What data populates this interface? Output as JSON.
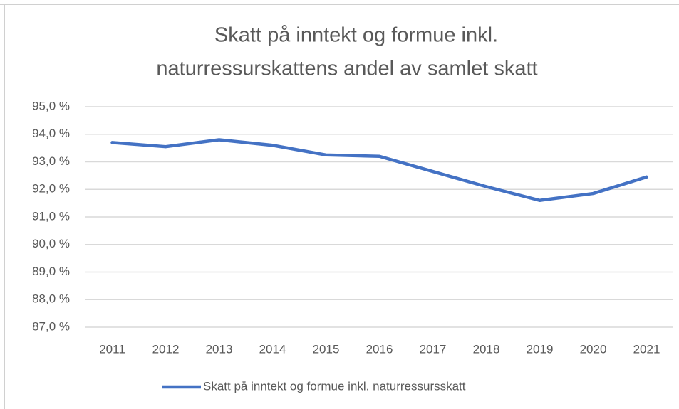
{
  "chart_data": {
    "type": "line",
    "title": [
      "Skatt på inntekt og formue inkl.",
      "naturressurskattens andel av samlet skatt"
    ],
    "categories": [
      "2011",
      "2012",
      "2013",
      "2014",
      "2015",
      "2016",
      "2017",
      "2018",
      "2019",
      "2020",
      "2021"
    ],
    "series": [
      {
        "name": "Skatt på inntekt og formue inkl. naturressursskatt",
        "color": "#4472c4",
        "values": [
          93.7,
          93.55,
          93.8,
          93.6,
          93.25,
          93.2,
          92.65,
          92.1,
          91.6,
          91.85,
          92.45
        ]
      }
    ],
    "ylim": [
      87,
      95
    ],
    "yticks": [
      {
        "value": 87,
        "label": "87,0 %"
      },
      {
        "value": 88,
        "label": "88,0 %"
      },
      {
        "value": 89,
        "label": "89,0 %"
      },
      {
        "value": 90,
        "label": "90,0 %"
      },
      {
        "value": 91,
        "label": "91,0 %"
      },
      {
        "value": 92,
        "label": "92,0 %"
      },
      {
        "value": 93,
        "label": "93,0 %"
      },
      {
        "value": 94,
        "label": "94,0 %"
      },
      {
        "value": 95,
        "label": "95,0 %"
      }
    ],
    "grid": true,
    "legend": "bottom"
  }
}
